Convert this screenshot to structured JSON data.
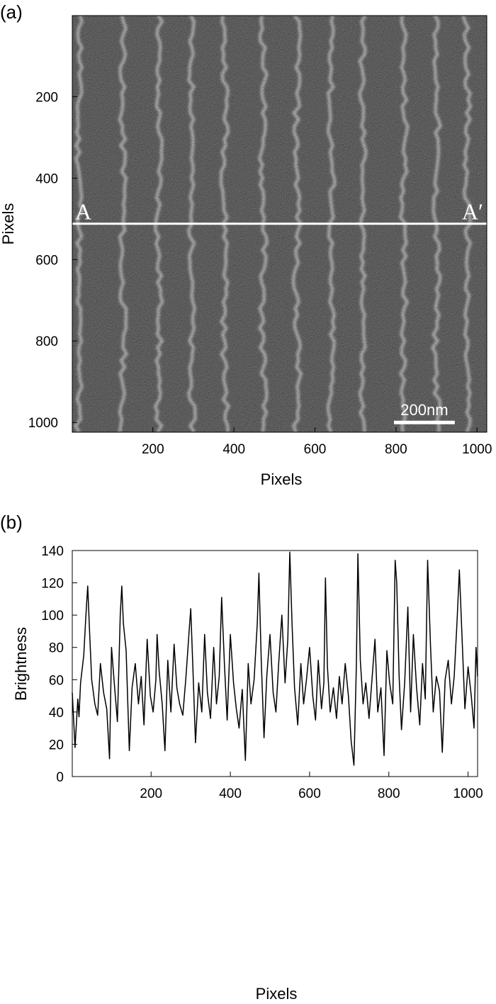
{
  "chart_data": [
    {
      "panel_label": "(a)",
      "type": "heatmap",
      "description_visible": "SEM image of vertical line pattern",
      "xlabel": "Pixels",
      "ylabel": "Pixels",
      "xlim": [
        1,
        1024
      ],
      "ylim": [
        1,
        1024
      ],
      "x_ticks": [
        200,
        400,
        600,
        800,
        1000
      ],
      "y_ticks": [
        200,
        400,
        600,
        800,
        1000
      ],
      "y_reversed": true,
      "line_centers_px": [
        18,
        126,
        215,
        296,
        378,
        472,
        556,
        640,
        718,
        820,
        900,
        975
      ],
      "cut_line": {
        "y": 512,
        "start_label": "A",
        "end_label": "A′"
      },
      "scale_bar": {
        "label": "200nm",
        "x_start": 795,
        "x_end": 945,
        "y": 1000
      },
      "colors": {
        "background": "#454545",
        "line": "#c8c8c8",
        "cut": "#ffffff"
      }
    },
    {
      "panel_label": "(b)",
      "type": "line",
      "xlabel": "Pixels",
      "ylabel": "Brightness",
      "xlim": [
        1,
        1024
      ],
      "ylim": [
        0,
        140
      ],
      "x_ticks": [
        200,
        400,
        600,
        800,
        1000
      ],
      "y_ticks": [
        0,
        20,
        40,
        60,
        80,
        100,
        120,
        140
      ],
      "series": [
        {
          "color": "#000000",
          "x": [
            1,
            8,
            15,
            18,
            22,
            30,
            35,
            40,
            45,
            50,
            58,
            65,
            72,
            80,
            88,
            95,
            100,
            108,
            115,
            122,
            126,
            130,
            137,
            145,
            152,
            160,
            168,
            175,
            182,
            190,
            198,
            205,
            212,
            215,
            220,
            228,
            235,
            242,
            250,
            258,
            265,
            272,
            280,
            288,
            296,
            300,
            305,
            312,
            320,
            328,
            335,
            342,
            350,
            358,
            365,
            372,
            378,
            385,
            392,
            400,
            408,
            415,
            422,
            430,
            438,
            445,
            452,
            460,
            468,
            472,
            478,
            485,
            492,
            500,
            508,
            515,
            522,
            530,
            538,
            545,
            550,
            556,
            562,
            570,
            578,
            585,
            592,
            600,
            608,
            615,
            622,
            630,
            636,
            640,
            645,
            652,
            660,
            668,
            675,
            682,
            690,
            698,
            705,
            712,
            718,
            722,
            728,
            735,
            742,
            750,
            758,
            765,
            772,
            780,
            788,
            795,
            802,
            810,
            816,
            820,
            826,
            832,
            840,
            848,
            855,
            862,
            870,
            878,
            885,
            892,
            898,
            905,
            912,
            920,
            928,
            935,
            942,
            950,
            958,
            965,
            972,
            978,
            985,
            992,
            1000,
            1008,
            1015,
            1020,
            1024
          ],
          "values": [
            52,
            18,
            48,
            37,
            58,
            75,
            98,
            118,
            88,
            60,
            45,
            38,
            70,
            52,
            42,
            11,
            80,
            55,
            34,
            100,
            118,
            95,
            78,
            16,
            55,
            70,
            45,
            62,
            32,
            85,
            50,
            40,
            60,
            88,
            66,
            45,
            16,
            72,
            40,
            82,
            55,
            45,
            38,
            62,
            90,
            104,
            70,
            21,
            58,
            40,
            88,
            52,
            36,
            80,
            45,
            62,
            111,
            70,
            35,
            88,
            58,
            42,
            30,
            54,
            10,
            70,
            45,
            60,
            95,
            126,
            72,
            24,
            62,
            88,
            52,
            40,
            70,
            100,
            58,
            85,
            139,
            93,
            55,
            32,
            70,
            45,
            60,
            80,
            50,
            35,
            72,
            42,
            58,
            123,
            68,
            40,
            55,
            36,
            62,
            45,
            70,
            50,
            22,
            7,
            68,
            138,
            72,
            45,
            58,
            36,
            62,
            85,
            40,
            55,
            13,
            78,
            58,
            45,
            134,
            120,
            62,
            29,
            58,
            105,
            40,
            88,
            55,
            32,
            70,
            48,
            134,
            82,
            40,
            62,
            53,
            15,
            60,
            72,
            45,
            62,
            95,
            128,
            85,
            42,
            68,
            50,
            30,
            80,
            62
          ]
        }
      ]
    }
  ]
}
